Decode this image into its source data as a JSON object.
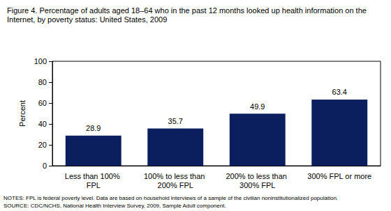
{
  "chart_data": {
    "type": "bar",
    "title": "Figure 4. Percentage of adults aged 18–64 who in the past 12 months looked up health information on the Internet, by poverty status: United States, 2009",
    "y_label": "Percent",
    "categories": [
      "Less than 100% FPL",
      "100% to less than 200% FPL",
      "200% to less than 300% FPL",
      "300% FPL or more"
    ],
    "values": [
      28.9,
      35.7,
      49.9,
      63.4
    ],
    "color": "#0b1f5e",
    "ylim": [
      0,
      100
    ],
    "yticks": [
      0,
      20,
      40,
      60,
      80,
      100
    ],
    "grid": false,
    "data_labels": true,
    "annotations": [
      "NOTES: FPL is federal poverty level. Data are based on household interviews of a sample of the civilian noninstitutionalized population.",
      "SOURCE: CDC/NCHS, National Health Interview Survey, 2009, Sample Adult component."
    ]
  }
}
